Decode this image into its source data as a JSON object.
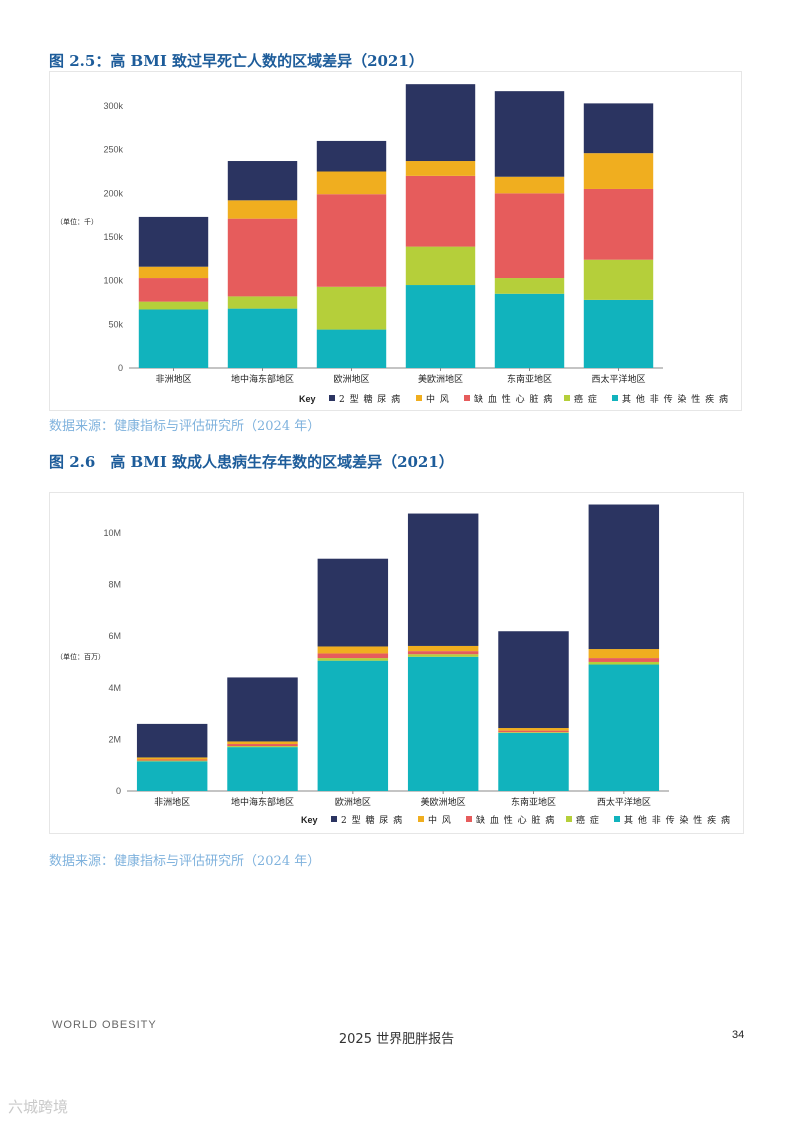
{
  "figure1": {
    "title": "图 2.5：高 BMI 致过早死亡人数的区域差异（2021）",
    "source": "数据来源：健康指标与评估研究所（2024 年）"
  },
  "figure2": {
    "title": "图 2.6　高 BMI 致成人患病生存年数的区域差异（2021）",
    "source": "数据来源：健康指标与评估研究所（2024 年）"
  },
  "footer": {
    "logo_text": "WORLD OBESITY",
    "report_title": "2025 世界肥胖报告",
    "page_number": "34"
  },
  "watermark": "六城跨境",
  "legend": {
    "key_label": "Key",
    "items": [
      {
        "label": "2 型 糖 尿 病",
        "color": "#2b3461"
      },
      {
        "label": "中 风",
        "color": "#f0ae1f"
      },
      {
        "label": "缺 血 性 心 脏 病",
        "color": "#e65c5c"
      },
      {
        "label": "癌 症",
        "color": "#b5cf3a"
      },
      {
        "label": "其 他 非 传 染 性 疾 病",
        "color": "#11b3bd"
      }
    ]
  },
  "chart_data": [
    {
      "type": "bar",
      "stacked": true,
      "unit_label": "（单位：千）",
      "categories": [
        "非洲地区",
        "地中海东部地区",
        "欧洲地区",
        "美欧洲地区",
        "东南亚地区",
        "西太平洋地区"
      ],
      "yticks": [
        "0",
        "50k",
        "100k",
        "150k",
        "200k",
        "250k",
        "300k"
      ],
      "ylim": [
        0,
        300000
      ],
      "series": [
        {
          "name": "其 他 非 传 染 性 疾 病",
          "color": "#11b3bd",
          "values": [
            67000,
            68000,
            44000,
            95000,
            85000,
            78000
          ]
        },
        {
          "name": "癌 症",
          "color": "#b5cf3a",
          "values": [
            9000,
            14000,
            49000,
            44000,
            18000,
            46000
          ]
        },
        {
          "name": "缺 血 性 心 脏 病",
          "color": "#e65c5c",
          "values": [
            27000,
            89000,
            106000,
            81000,
            97000,
            81000
          ]
        },
        {
          "name": "中 风",
          "color": "#f0ae1f",
          "values": [
            13000,
            21000,
            26000,
            17000,
            19000,
            41000
          ]
        },
        {
          "name": "2 型 糖 尿 病",
          "color": "#2b3461",
          "values": [
            57000,
            45000,
            35000,
            88000,
            98000,
            57000
          ]
        }
      ]
    },
    {
      "type": "bar",
      "stacked": true,
      "unit_label": "（单位：百万）",
      "categories": [
        "非洲地区",
        "地中海东部地区",
        "欧洲地区",
        "美欧洲地区",
        "东南亚地区",
        "西太平洋地区"
      ],
      "yticks": [
        "0",
        "2M",
        "4M",
        "6M",
        "8M",
        "10M"
      ],
      "ylim": [
        0,
        10500000
      ],
      "series": [
        {
          "name": "其 他 非 传 染 性 疾 病",
          "color": "#11b3bd",
          "values": [
            1150000,
            1700000,
            5050000,
            5200000,
            2250000,
            4900000
          ]
        },
        {
          "name": "癌 症",
          "color": "#b5cf3a",
          "values": [
            30000,
            40000,
            100000,
            100000,
            30000,
            100000
          ]
        },
        {
          "name": "缺 血 性 心 脏 病",
          "color": "#e65c5c",
          "values": [
            40000,
            80000,
            180000,
            120000,
            60000,
            150000
          ]
        },
        {
          "name": "中 风",
          "color": "#f0ae1f",
          "values": [
            80000,
            100000,
            270000,
            200000,
            100000,
            350000
          ]
        },
        {
          "name": "2 型 糖 尿 病",
          "color": "#2b3461",
          "values": [
            1300000,
            2480000,
            3400000,
            5130000,
            3750000,
            5600000
          ]
        }
      ]
    }
  ]
}
